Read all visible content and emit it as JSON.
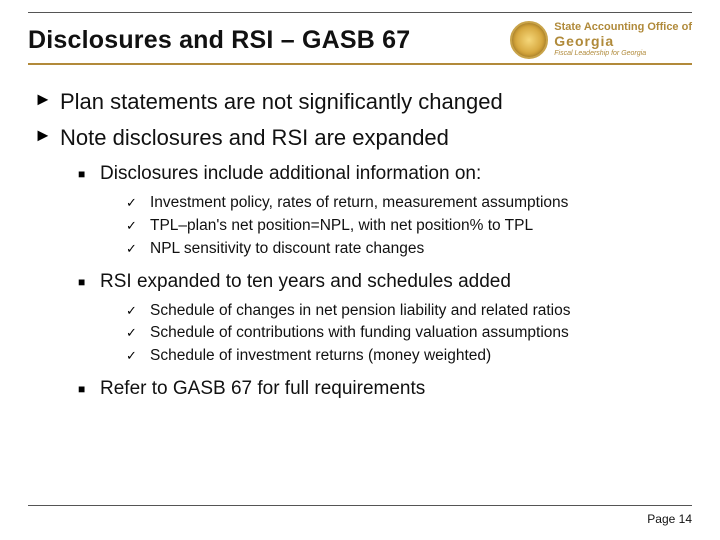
{
  "header": {
    "title": "Disclosures and RSI – GASB 67",
    "logo": {
      "line1": "State Accounting Office of",
      "line2": "Georgia",
      "line3": "Fiscal Leadership for Georgia"
    }
  },
  "bullets": {
    "l1": [
      "Plan statements are not significantly changed",
      "Note disclosures and RSI are expanded"
    ],
    "l2": [
      "Disclosures include additional information on:",
      "RSI expanded to ten years and schedules added",
      "Refer to GASB 67 for full requirements"
    ],
    "l3a": [
      "Investment policy, rates of return, measurement assumptions",
      "TPL–plan's net position=NPL, with net position% to TPL",
      "NPL sensitivity to discount rate changes"
    ],
    "l3b": [
      "Schedule of changes in net pension liability and related ratios",
      "Schedule of contributions with funding valuation assumptions",
      "Schedule of investment returns (money weighted)"
    ]
  },
  "footer": {
    "page": "Page 14"
  },
  "style": {
    "accent": "#b28a3a",
    "text": "#111111",
    "background": "#ffffff"
  }
}
